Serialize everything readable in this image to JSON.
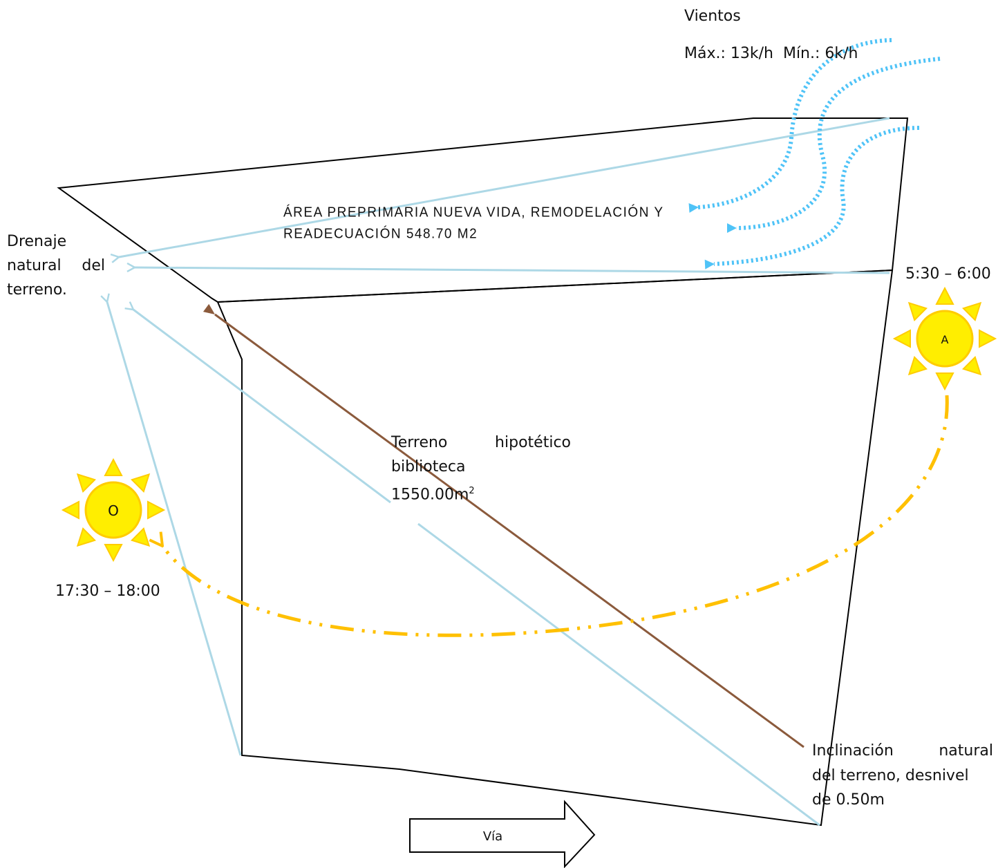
{
  "labels": {
    "winds_title": "Vientos",
    "winds_speed": "Máx.: 13k/h  Mín.: 6k/h",
    "drainage_line1": "Drenaje",
    "drainage_line2": "natural del",
    "drainage_line3": "terreno.",
    "area_line1": "ÁREA PREPRIMARIA NUEVA VIDA, REMODELACIÓN Y",
    "area_line2": "READECUACIÓN 548.70 M2",
    "sunrise_time": "5:30 – 6:00",
    "sunset_time": "17:30 – 18:00",
    "terrain_line1": "Terreno hipotético",
    "terrain_line2": "biblioteca",
    "terrain_line3": "1550.00m",
    "terrain_sup": "2",
    "slope_line1": "Inclinación natural",
    "slope_line2": "del terreno, desnivel",
    "slope_line3": "de 0.50m",
    "road": "Vía"
  },
  "suns": {
    "east_letter": "A",
    "west_letter": "O"
  },
  "colors": {
    "outline": "#000000",
    "drainage": "#add8e6",
    "wind": "#4fc3f7",
    "slope": "#8b5a3c",
    "sun_path": "#ffc000",
    "sun_fill": "#ffee00",
    "sun_ray": "#ffcc00"
  }
}
